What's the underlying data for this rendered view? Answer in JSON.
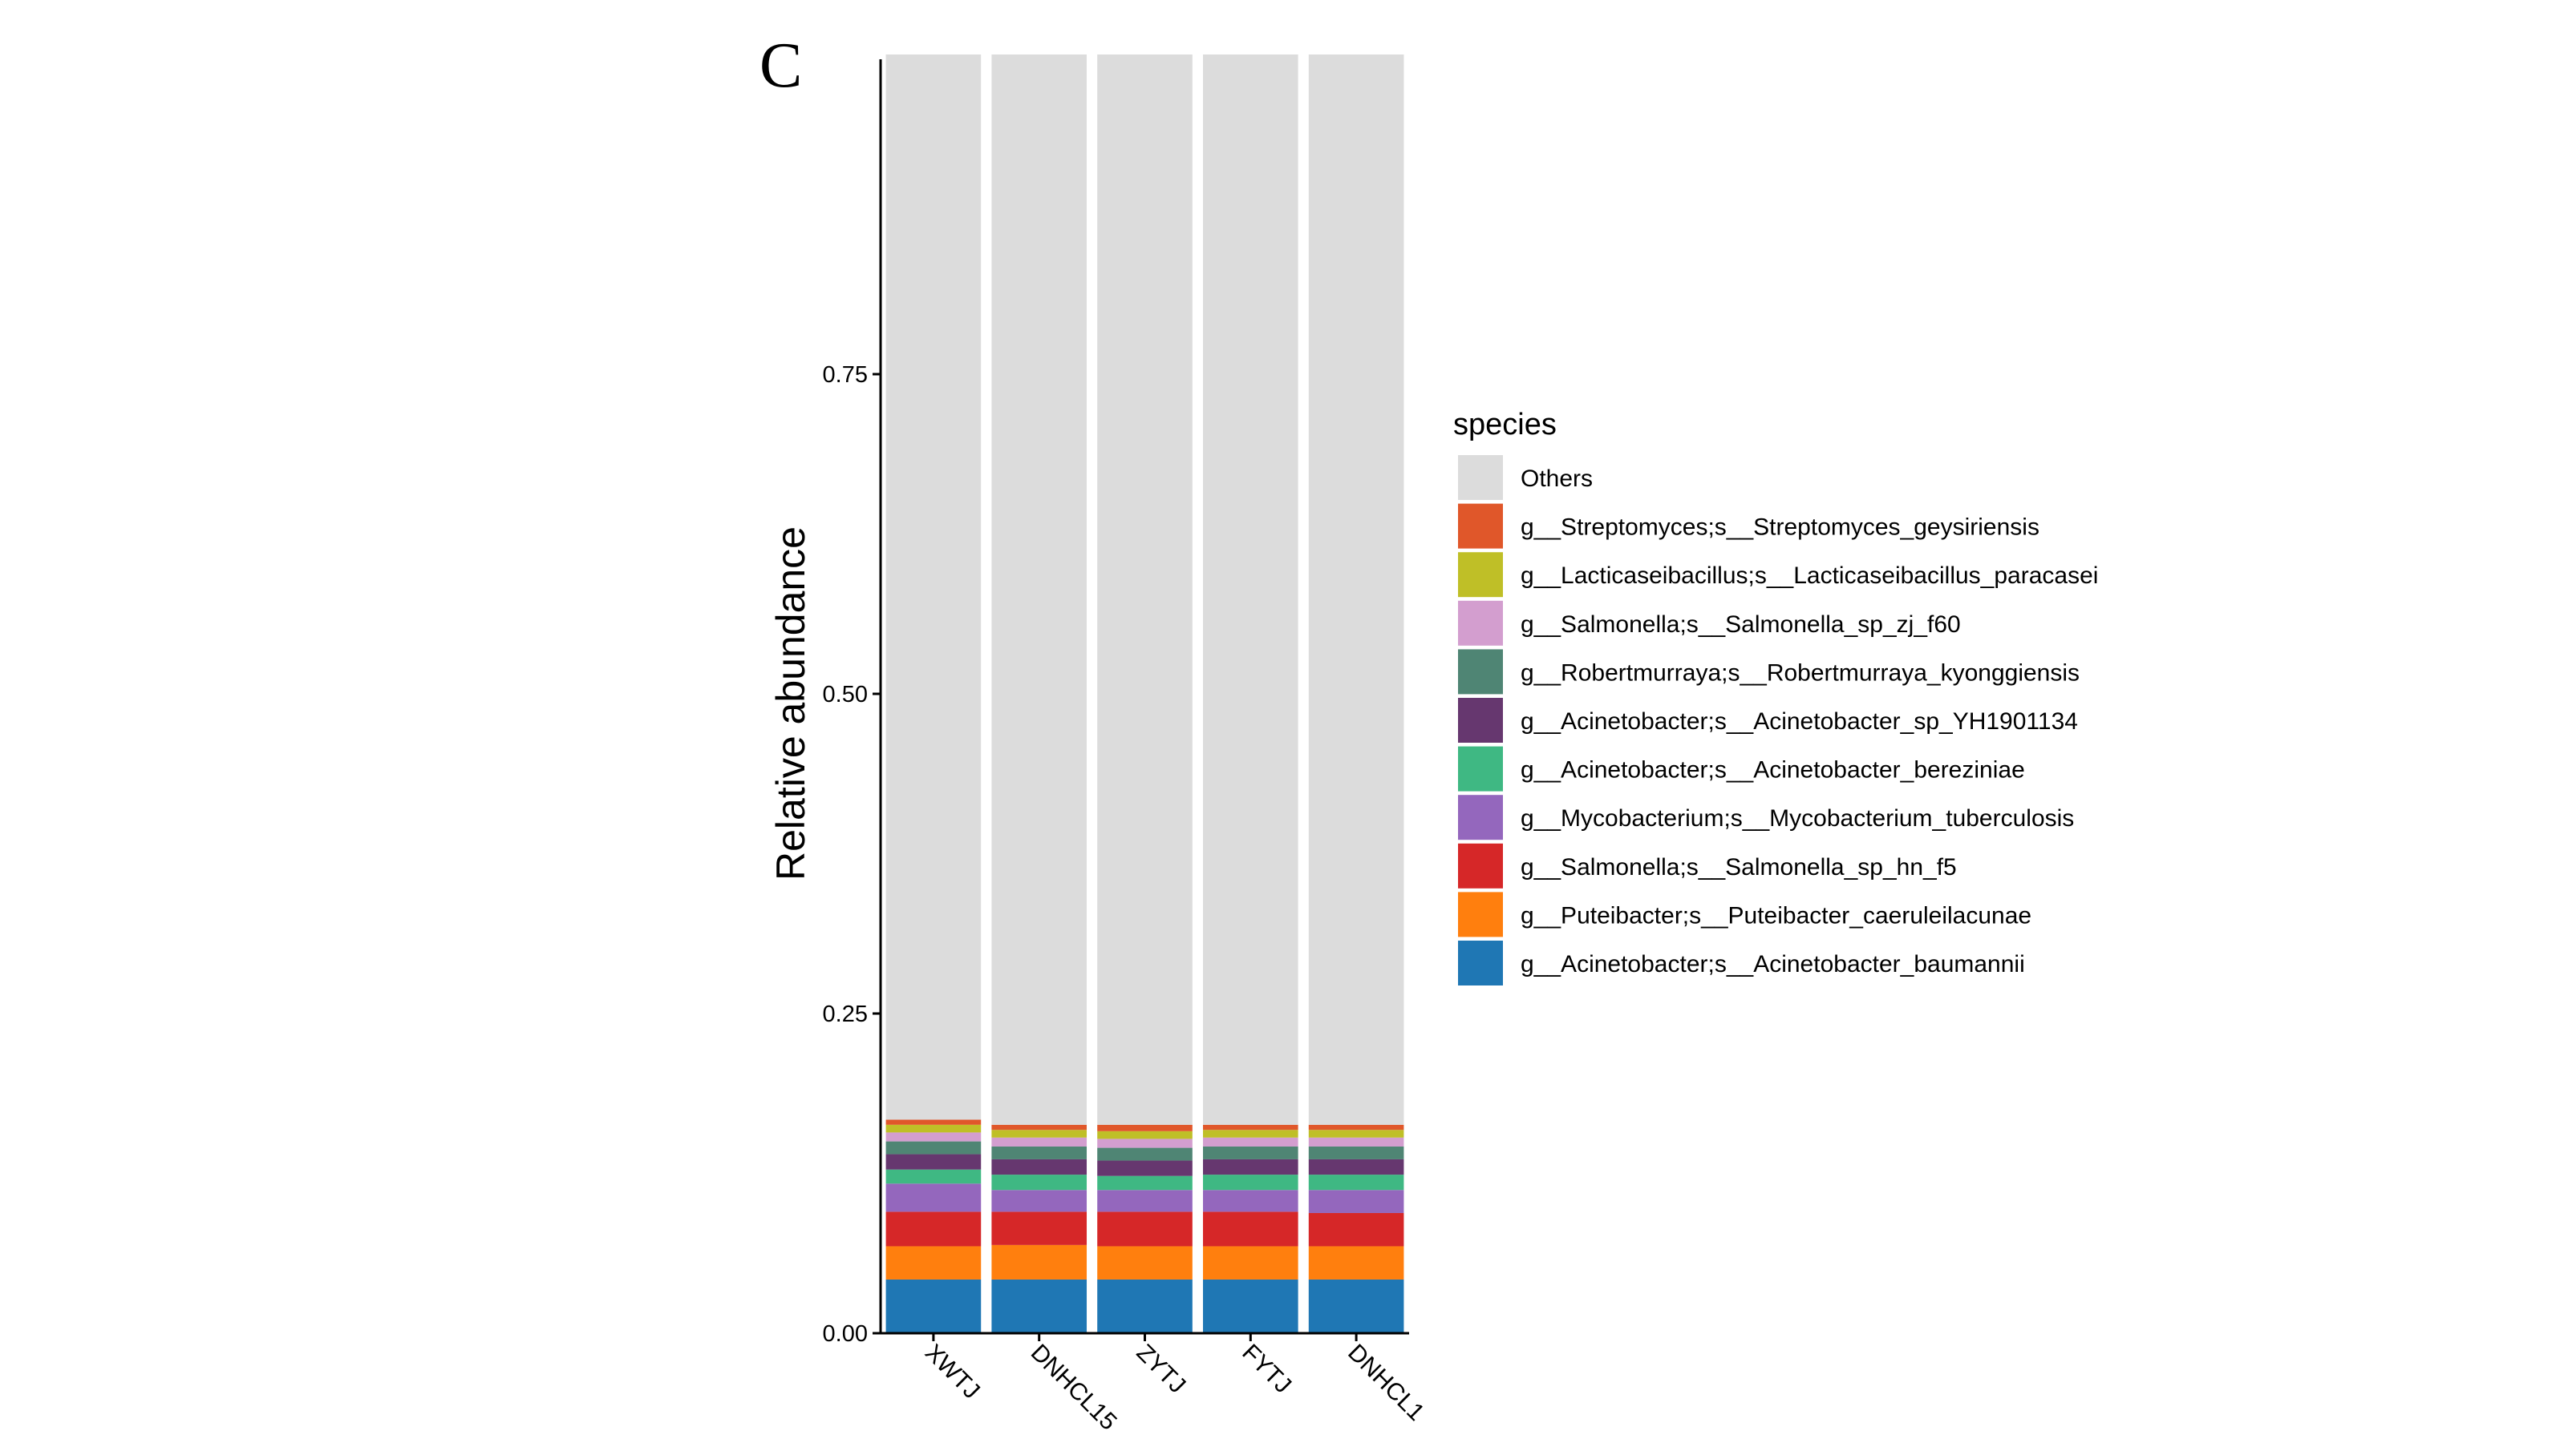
{
  "panel_label": "C",
  "chart_data": {
    "type": "bar",
    "stacked": true,
    "categories": [
      "XWTJ",
      "DNHCL15",
      "ZYTJ",
      "FYTJ",
      "DNHCL1"
    ],
    "ylabel": "Relative abundance",
    "xlabel": "",
    "ylim": [
      0,
      1
    ],
    "yticks": [
      "0.00",
      "0.25",
      "0.50",
      "0.75"
    ],
    "ytick_values": [
      0,
      0.25,
      0.5,
      0.75
    ],
    "grid": false,
    "legend_title": "species",
    "legend_position": "right",
    "series": [
      {
        "name": "g__Acinetobacter;s__Acinetobacter_baumannii",
        "color": "#1f77b4",
        "values": [
          0.042,
          0.042,
          0.042,
          0.042,
          0.042
        ]
      },
      {
        "name": "g__Puteibacter;s__Puteibacter_caeruleilacunae",
        "color": "#ff7f0e",
        "values": [
          0.026,
          0.027,
          0.026,
          0.026,
          0.026
        ]
      },
      {
        "name": "g__Salmonella;s__Salmonella_sp_hn_f5",
        "color": "#d62728",
        "values": [
          0.027,
          0.026,
          0.027,
          0.027,
          0.026
        ]
      },
      {
        "name": "g__Mycobacterium;s__Mycobacterium_tuberculosis",
        "color": "#9467bd",
        "values": [
          0.022,
          0.017,
          0.017,
          0.017,
          0.018
        ]
      },
      {
        "name": "g__Acinetobacter;s__Acinetobacter_bereziniae",
        "color": "#3fb883",
        "values": [
          0.011,
          0.012,
          0.011,
          0.012,
          0.012
        ]
      },
      {
        "name": "g__Acinetobacter;s__Acinetobacter_sp_YH1901134",
        "color": "#66376f",
        "values": [
          0.012,
          0.012,
          0.012,
          0.012,
          0.012
        ]
      },
      {
        "name": "g__Robertmurraya;s__Robertmurraya_kyonggiensis",
        "color": "#4f8574",
        "values": [
          0.01,
          0.01,
          0.01,
          0.01,
          0.01
        ]
      },
      {
        "name": "g__Salmonella;s__Salmonella_sp_zj_f60",
        "color": "#d39ecf",
        "values": [
          0.007,
          0.007,
          0.007,
          0.007,
          0.007
        ]
      },
      {
        "name": "g__Lacticaseibacillus;s__Lacticaseibacillus_paracasei",
        "color": "#bfbf27",
        "values": [
          0.006,
          0.006,
          0.006,
          0.006,
          0.006
        ]
      },
      {
        "name": "g__Streptomyces;s__Streptomyces_geysiriensis",
        "color": "#e0572a",
        "values": [
          0.004,
          0.004,
          0.005,
          0.004,
          0.004
        ]
      },
      {
        "name": "Others",
        "color": "#dcdcdc",
        "values": [
          0.833,
          0.837,
          0.837,
          0.837,
          0.837
        ]
      }
    ],
    "legend_order": [
      "Others",
      "g__Streptomyces;s__Streptomyces_geysiriensis",
      "g__Lacticaseibacillus;s__Lacticaseibacillus_paracasei",
      "g__Salmonella;s__Salmonella_sp_zj_f60",
      "g__Robertmurraya;s__Robertmurraya_kyonggiensis",
      "g__Acinetobacter;s__Acinetobacter_sp_YH1901134",
      "g__Acinetobacter;s__Acinetobacter_bereziniae",
      "g__Mycobacterium;s__Mycobacterium_tuberculosis",
      "g__Salmonella;s__Salmonella_sp_hn_f5",
      "g__Puteibacter;s__Puteibacter_caeruleilacunae",
      "g__Acinetobacter;s__Acinetobacter_baumannii"
    ]
  }
}
